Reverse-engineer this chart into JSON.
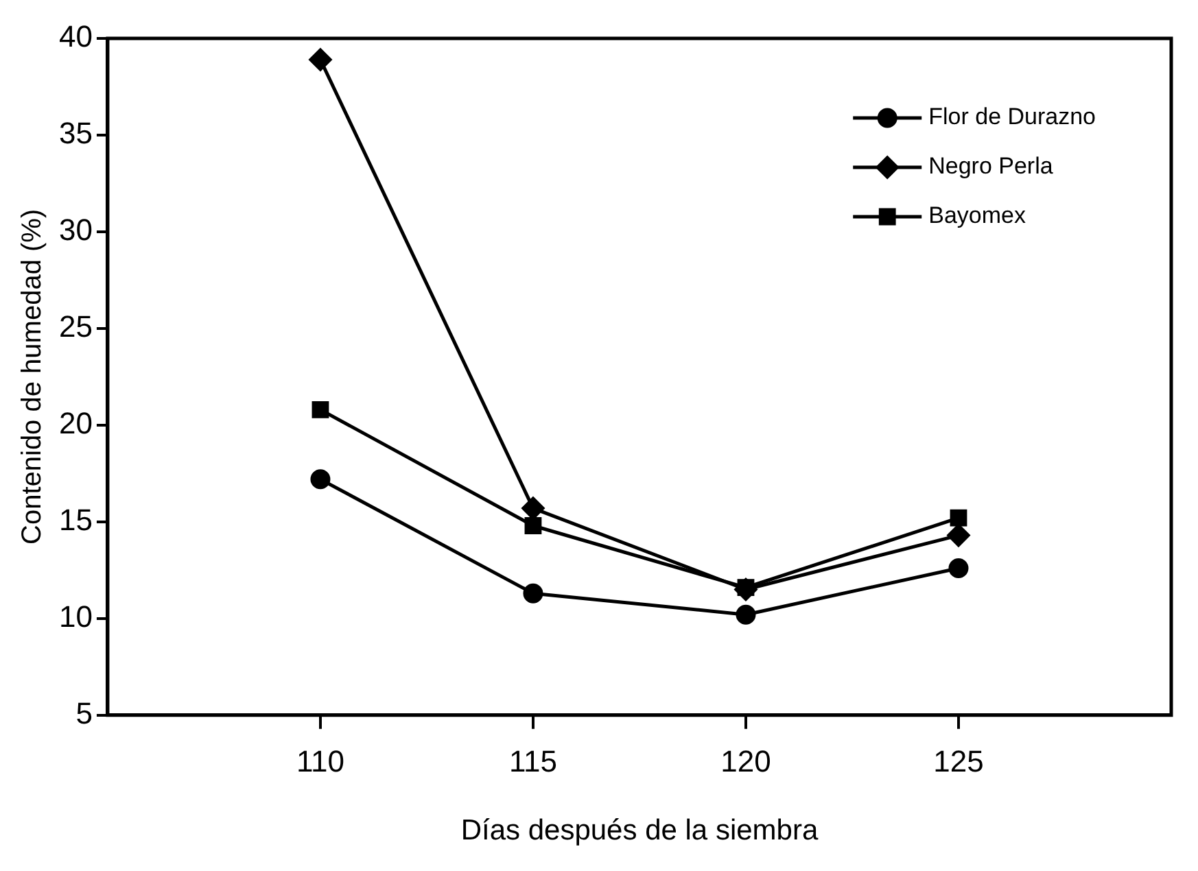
{
  "chart_data": {
    "type": "line",
    "xlabel": "Días después de la siembra",
    "ylabel": "Contenido de humedad (%)",
    "x": [
      110,
      115,
      120,
      125
    ],
    "series": [
      {
        "name": "Flor de Durazno",
        "color": "#000000",
        "marker": "circle",
        "values": [
          17.2,
          11.3,
          10.2,
          12.6
        ]
      },
      {
        "name": "Negro Perla",
        "color": "#000000",
        "marker": "diamond",
        "values": [
          38.9,
          15.7,
          11.5,
          14.3
        ]
      },
      {
        "name": "Bayomex",
        "color": "#000000",
        "marker": "square",
        "values": [
          20.8,
          14.8,
          11.6,
          15.2
        ]
      }
    ],
    "xlim": [
      105,
      130
    ],
    "xticks": [
      110,
      115,
      120,
      125
    ],
    "ylim": [
      5,
      40
    ],
    "yticks": [
      5,
      10,
      15,
      20,
      25,
      30,
      35,
      40
    ],
    "grid": false,
    "legend": "top right",
    "line_style": "solid"
  }
}
